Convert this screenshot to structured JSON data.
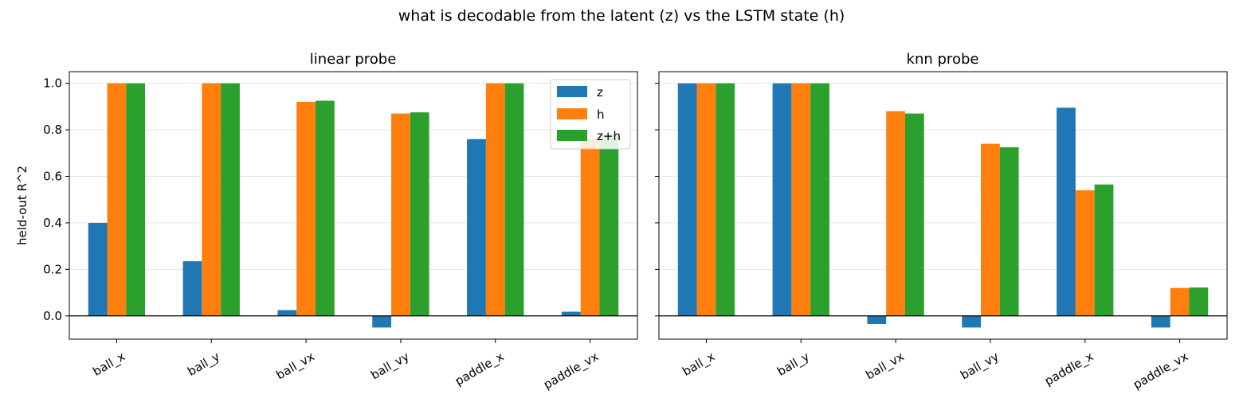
{
  "figure": {
    "suptitle": "what is decodable from the latent (z) vs the LSTM state (h)",
    "ylabel": "held-out R^2"
  },
  "colors": {
    "z": "#1f77b4",
    "h": "#ff7f0e",
    "z+h": "#2ca02c",
    "grid": "#e6e6e6",
    "zero_line": "#000000"
  },
  "chart_data": [
    {
      "type": "bar",
      "title": "linear probe",
      "categories": [
        "ball_x",
        "ball_y",
        "ball_vx",
        "ball_vy",
        "paddle_x",
        "paddle_vx"
      ],
      "series": [
        {
          "name": "z",
          "values": [
            0.4,
            0.235,
            0.025,
            -0.05,
            0.76,
            0.018
          ]
        },
        {
          "name": "h",
          "values": [
            1.0,
            1.0,
            0.92,
            0.87,
            1.0,
            0.76
          ]
        },
        {
          "name": "z+h",
          "values": [
            1.0,
            1.0,
            0.925,
            0.875,
            1.0,
            0.78
          ]
        }
      ],
      "ylim": [
        -0.1,
        1.05
      ],
      "yticks": [
        "0.0",
        "0.2",
        "0.4",
        "0.6",
        "0.8",
        "1.0"
      ],
      "grid": "horizontal",
      "legend": {
        "placement": "upper right",
        "entries": [
          "z",
          "h",
          "z+h"
        ]
      }
    },
    {
      "type": "bar",
      "title": "knn probe",
      "categories": [
        "ball_x",
        "ball_y",
        "ball_vx",
        "ball_vy",
        "paddle_x",
        "paddle_vx"
      ],
      "series": [
        {
          "name": "z",
          "values": [
            1.0,
            1.0,
            -0.035,
            -0.05,
            0.895,
            -0.05
          ]
        },
        {
          "name": "h",
          "values": [
            1.0,
            1.0,
            0.88,
            0.74,
            0.54,
            0.12
          ]
        },
        {
          "name": "z+h",
          "values": [
            1.0,
            1.0,
            0.87,
            0.725,
            0.565,
            0.122
          ]
        }
      ],
      "ylim": [
        -0.1,
        1.05
      ],
      "grid": "horizontal",
      "sharey": true
    }
  ]
}
